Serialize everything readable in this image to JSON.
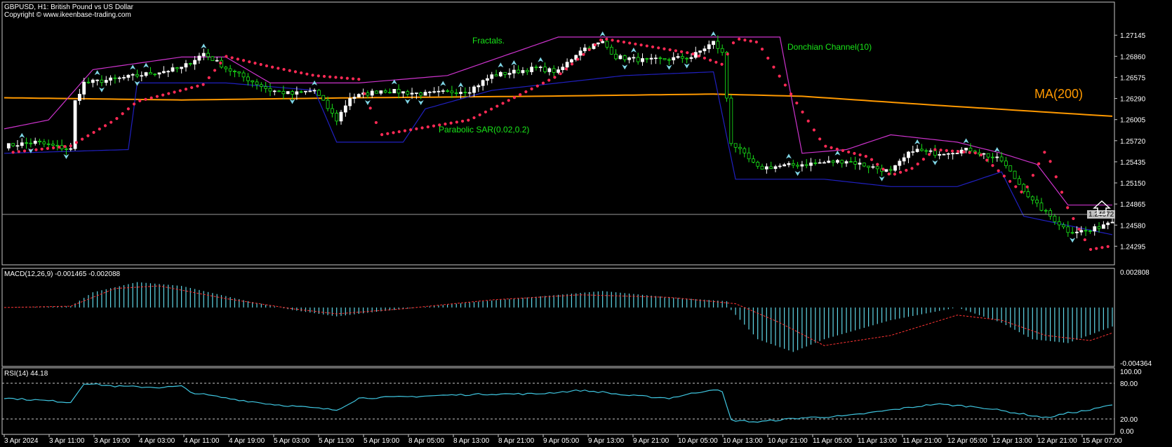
{
  "header": {
    "symbol_line": "GBPUSD, H1:  British Pound vs US Dollar",
    "copyright": "Copyright © www.ikeenbase-trading.com"
  },
  "colors": {
    "background": "#000000",
    "frame": "#c8c8c8",
    "bull_candle": "#ffffff",
    "bear_candle": "#19e619",
    "donchian_upper": "#cc33cc",
    "donchian_lower": "#2020c0",
    "sar": "#ff2a55",
    "ma": "#ff9900",
    "fractal": "#7fd6e6",
    "macd_hist": "#5fd6e6",
    "macd_signal": "#ff3333",
    "rsi": "#3fc6e0",
    "annotation": "#19e619"
  },
  "annotations": {
    "fractals": "Fractals.",
    "donchian": "Donchian Channel(10)",
    "sar": "Parabolic SAR(0.02,0.2)",
    "ma": "MA(200)"
  },
  "current_price": "1.24672",
  "chart_data": [
    {
      "type": "candlestick",
      "panel": "price",
      "y_ticks": [
        "1.27145",
        "1.26860",
        "1.26575",
        "1.26290",
        "1.26005",
        "1.25720",
        "1.25435",
        "1.25150",
        "1.24865",
        "1.24580",
        "1.24295"
      ],
      "ylim": [
        1.241,
        1.2745
      ],
      "x_tick_labels": [
        "3 Apr 2024",
        "3 Apr 11:00",
        "3 Apr 19:00",
        "4 Apr 03:00",
        "4 Apr 11:00",
        "4 Apr 19:00",
        "5 Apr 03:00",
        "5 Apr 11:00",
        "5 Apr 19:00",
        "8 Apr 05:00",
        "8 Apr 13:00",
        "8 Apr 21:00",
        "9 Apr 05:00",
        "9 Apr 13:00",
        "9 Apr 21:00",
        "10 Apr 05:00",
        "10 Apr 13:00",
        "10 Apr 21:00",
        "11 Apr 05:00",
        "11 Apr 13:00",
        "11 Apr 21:00",
        "12 Apr 05:00",
        "12 Apr 13:00",
        "12 Apr 21:00",
        "15 Apr 07:00"
      ],
      "close_path": [
        [
          0,
          1.2565
        ],
        [
          7,
          1.257
        ],
        [
          15,
          1.256
        ],
        [
          16,
          1.2625
        ],
        [
          18,
          1.265
        ],
        [
          25,
          1.2655
        ],
        [
          35,
          1.2665
        ],
        [
          40,
          1.267
        ],
        [
          45,
          1.269
        ],
        [
          50,
          1.267
        ],
        [
          55,
          1.2655
        ],
        [
          60,
          1.264
        ],
        [
          65,
          1.2635
        ],
        [
          70,
          1.264
        ],
        [
          75,
          1.26
        ],
        [
          78,
          1.263
        ],
        [
          85,
          1.264
        ],
        [
          95,
          1.2635
        ],
        [
          105,
          1.264
        ],
        [
          110,
          1.266
        ],
        [
          120,
          1.267
        ],
        [
          125,
          1.2665
        ],
        [
          130,
          1.2695
        ],
        [
          135,
          1.2705
        ],
        [
          138,
          1.2685
        ],
        [
          145,
          1.268
        ],
        [
          155,
          1.2685
        ],
        [
          160,
          1.2705
        ],
        [
          162,
          1.269
        ],
        [
          164,
          1.257
        ],
        [
          170,
          1.2535
        ],
        [
          180,
          1.254
        ],
        [
          190,
          1.2545
        ],
        [
          200,
          1.253
        ],
        [
          205,
          1.256
        ],
        [
          210,
          1.2555
        ],
        [
          218,
          1.256
        ],
        [
          225,
          1.2545
        ],
        [
          232,
          1.249
        ],
        [
          240,
          1.245
        ],
        [
          245,
          1.245
        ],
        [
          250,
          1.2465
        ]
      ],
      "ma200_path": [
        [
          0,
          1.263
        ],
        [
          40,
          1.2627
        ],
        [
          80,
          1.263
        ],
        [
          120,
          1.2632
        ],
        [
          160,
          1.2635
        ],
        [
          180,
          1.2632
        ],
        [
          210,
          1.262
        ],
        [
          250,
          1.2605
        ]
      ],
      "donchian_upper_path": [
        [
          0,
          1.2588
        ],
        [
          10,
          1.26
        ],
        [
          20,
          1.2668
        ],
        [
          40,
          1.2685
        ],
        [
          50,
          1.2685
        ],
        [
          60,
          1.265
        ],
        [
          80,
          1.265
        ],
        [
          100,
          1.266
        ],
        [
          125,
          1.2712
        ],
        [
          145,
          1.2712
        ],
        [
          160,
          1.2712
        ],
        [
          175,
          1.2712
        ],
        [
          180,
          1.2555
        ],
        [
          190,
          1.256
        ],
        [
          200,
          1.258
        ],
        [
          215,
          1.257
        ],
        [
          225,
          1.2555
        ],
        [
          233,
          1.254
        ],
        [
          240,
          1.2485
        ],
        [
          250,
          1.2485
        ]
      ],
      "donchian_lower_path": [
        [
          0,
          1.2555
        ],
        [
          28,
          1.256
        ],
        [
          30,
          1.265
        ],
        [
          50,
          1.265
        ],
        [
          70,
          1.264
        ],
        [
          75,
          1.257
        ],
        [
          90,
          1.257
        ],
        [
          95,
          1.2615
        ],
        [
          110,
          1.264
        ],
        [
          140,
          1.266
        ],
        [
          160,
          1.2665
        ],
        [
          165,
          1.252
        ],
        [
          185,
          1.252
        ],
        [
          200,
          1.251
        ],
        [
          215,
          1.251
        ],
        [
          225,
          1.253
        ],
        [
          230,
          1.247
        ],
        [
          250,
          1.2445
        ]
      ],
      "sar_path": [
        [
          0,
          1.2555
        ],
        [
          15,
          1.2565
        ],
        [
          25,
          1.26
        ],
        [
          30,
          1.2625
        ],
        [
          40,
          1.264
        ],
        [
          45,
          1.2648
        ],
        [
          50,
          1.2686
        ],
        [
          60,
          1.2672
        ],
        [
          70,
          1.266
        ],
        [
          80,
          1.2655
        ],
        [
          85,
          1.258
        ],
        [
          95,
          1.259
        ],
        [
          105,
          1.26
        ],
        [
          115,
          1.263
        ],
        [
          125,
          1.266
        ],
        [
          135,
          1.271
        ],
        [
          155,
          1.269
        ],
        [
          162,
          1.2675
        ],
        [
          165,
          1.271
        ],
        [
          170,
          1.2705
        ],
        [
          185,
          1.2565
        ],
        [
          195,
          1.255
        ],
        [
          200,
          1.2525
        ],
        [
          205,
          1.2535
        ],
        [
          210,
          1.256
        ],
        [
          220,
          1.2555
        ],
        [
          230,
          1.25
        ],
        [
          235,
          1.256
        ],
        [
          240,
          1.248
        ],
        [
          245,
          1.2425
        ],
        [
          250,
          1.243
        ]
      ]
    },
    {
      "type": "histogram",
      "panel": "macd",
      "legend": "MACD(12,26,9) -0.001465 -0.002088",
      "y_ticks": [
        "0.002808",
        "-0.004364"
      ],
      "ylim": [
        -0.004364,
        0.002808
      ],
      "hist_path": [
        [
          0,
          0.0
        ],
        [
          15,
          0.0001
        ],
        [
          20,
          0.0012
        ],
        [
          30,
          0.002
        ],
        [
          40,
          0.0017
        ],
        [
          55,
          0.0005
        ],
        [
          65,
          -0.0002
        ],
        [
          75,
          -0.0007
        ],
        [
          85,
          -0.0003
        ],
        [
          105,
          0.0004
        ],
        [
          125,
          0.001
        ],
        [
          135,
          0.0013
        ],
        [
          150,
          0.0008
        ],
        [
          163,
          0.0005
        ],
        [
          164,
          -0.0002
        ],
        [
          170,
          -0.0025
        ],
        [
          178,
          -0.0035
        ],
        [
          185,
          -0.0025
        ],
        [
          200,
          -0.001
        ],
        [
          215,
          0.0
        ],
        [
          225,
          -0.0012
        ],
        [
          232,
          -0.0025
        ],
        [
          240,
          -0.0028
        ],
        [
          250,
          -0.0015
        ]
      ],
      "signal_path": [
        [
          0,
          0.0
        ],
        [
          15,
          0.0001
        ],
        [
          25,
          0.0015
        ],
        [
          35,
          0.0017
        ],
        [
          50,
          0.0007
        ],
        [
          65,
          -0.0001
        ],
        [
          75,
          -0.0005
        ],
        [
          90,
          -0.0001
        ],
        [
          110,
          0.0006
        ],
        [
          130,
          0.001
        ],
        [
          150,
          0.0008
        ],
        [
          165,
          0.0003
        ],
        [
          175,
          -0.0012
        ],
        [
          185,
          -0.003
        ],
        [
          200,
          -0.0022
        ],
        [
          215,
          -0.0006
        ],
        [
          225,
          -0.001
        ],
        [
          235,
          -0.0022
        ],
        [
          245,
          -0.0026
        ],
        [
          250,
          -0.002
        ]
      ]
    },
    {
      "type": "line",
      "panel": "rsi",
      "legend": "RSI(14) 44.18",
      "y_ticks": [
        "100.00",
        "80.00",
        "20.00",
        "0.00"
      ],
      "levels": [
        80,
        20
      ],
      "ylim": [
        0,
        100
      ],
      "rsi_path": [
        [
          0,
          55
        ],
        [
          7,
          52
        ],
        [
          15,
          48
        ],
        [
          18,
          80
        ],
        [
          25,
          75
        ],
        [
          35,
          73
        ],
        [
          40,
          75
        ],
        [
          42,
          65
        ],
        [
          50,
          55
        ],
        [
          60,
          45
        ],
        [
          75,
          35
        ],
        [
          80,
          55
        ],
        [
          90,
          57
        ],
        [
          100,
          60
        ],
        [
          110,
          62
        ],
        [
          120,
          62
        ],
        [
          130,
          68
        ],
        [
          135,
          65
        ],
        [
          140,
          60
        ],
        [
          150,
          55
        ],
        [
          160,
          70
        ],
        [
          162,
          65
        ],
        [
          164,
          18
        ],
        [
          170,
          15
        ],
        [
          180,
          22
        ],
        [
          190,
          25
        ],
        [
          200,
          35
        ],
        [
          210,
          45
        ],
        [
          220,
          40
        ],
        [
          230,
          28
        ],
        [
          235,
          22
        ],
        [
          240,
          30
        ],
        [
          245,
          35
        ],
        [
          250,
          44
        ]
      ]
    }
  ]
}
